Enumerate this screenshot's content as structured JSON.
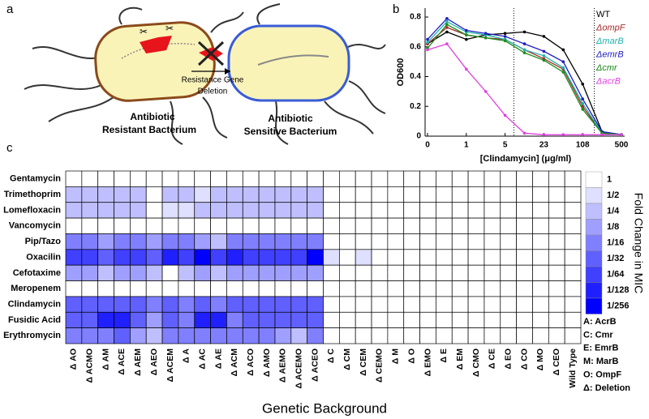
{
  "diagram": {
    "panel_label": "a",
    "gene_label_lines": [
      "Resistance Gene",
      "Deletion"
    ],
    "resistant_label_lines": [
      "Antibiotic",
      "Resistant Bacterium"
    ],
    "sensitive_label_lines": [
      "Antibiotic",
      "Sensitive Bacterium"
    ]
  },
  "chart_data": [
    {
      "type": "line",
      "panel_label": "b",
      "xlabel": "[Clindamycin] (μg/ml)",
      "ylabel": "OD600",
      "categories": [
        "0",
        null,
        "1",
        null,
        "5",
        null,
        "23",
        null,
        "108",
        null,
        "500"
      ],
      "ylim": [
        0,
        0.86
      ],
      "yticks": [
        0,
        0.2,
        0.4,
        0.6,
        0.8
      ],
      "legend": "upper right",
      "series": [
        {
          "name": "WT",
          "color": "#000000",
          "values": [
            0.62,
            0.7,
            0.65,
            0.68,
            0.69,
            0.7,
            0.67,
            0.58,
            0.35,
            0.03,
            0.01
          ]
        },
        {
          "name": "ΔompF",
          "color": "#a52a2a",
          "values": [
            0.62,
            0.73,
            0.68,
            0.66,
            0.65,
            0.58,
            0.52,
            0.45,
            0.2,
            0.02,
            0.01
          ]
        },
        {
          "name": "ΔmarB",
          "color": "#20b2aa",
          "values": [
            0.63,
            0.77,
            0.7,
            0.68,
            0.65,
            0.58,
            0.54,
            0.46,
            0.22,
            0.02,
            0.01
          ]
        },
        {
          "name": "ΔemrB",
          "color": "#1f1fbf",
          "values": [
            0.65,
            0.79,
            0.71,
            0.69,
            0.67,
            0.62,
            0.57,
            0.5,
            0.25,
            0.03,
            0.01
          ]
        },
        {
          "name": "Δcmr",
          "color": "#1a8a1a",
          "values": [
            0.59,
            0.75,
            0.68,
            0.66,
            0.64,
            0.56,
            0.51,
            0.43,
            0.18,
            0.02,
            0.01
          ]
        },
        {
          "name": "ΔacrB",
          "color": "#e040e0",
          "values": [
            0.58,
            0.62,
            0.45,
            0.3,
            0.14,
            0.02,
            0.01,
            0.01,
            0.01,
            0.01,
            0.01
          ]
        }
      ]
    },
    {
      "type": "heatmap",
      "panel_label": "c",
      "xlabel": "Genetic Background",
      "colorbar_label": "Fold Change in MIC",
      "color_min": "#ffffff",
      "color_max": "#0000ff",
      "rows": [
        "Gentamycin",
        "Trimethoprim",
        "Lomefloxacin",
        "Vancomycin",
        "Pip/Tazo",
        "Oxacilin",
        "Cefotaxime",
        "Meropenem",
        "Clindamycin",
        "Fusidic Acid",
        "Erythromycin"
      ],
      "columns": [
        "Δ AO",
        "Δ ACMO",
        "Δ AM",
        "Δ ACE",
        "Δ AEM",
        "Δ AEO",
        "Δ ACEM",
        "Δ A",
        "Δ AC",
        "Δ AE",
        "Δ ACM",
        "Δ ACO",
        "Δ AMO",
        "Δ AEMO",
        "Δ ACEMO",
        "Δ ACEO",
        "Δ C",
        "Δ CM",
        "Δ CEM",
        "Δ CEMO",
        "Δ M",
        "Δ O",
        "Δ EMO",
        "Δ E",
        "Δ EM",
        "Δ CMO",
        "Δ CE",
        "Δ EO",
        "Δ CO",
        "Δ MO",
        "Δ CEO",
        "Wild Type"
      ],
      "values": [
        [
          1,
          1,
          1,
          1,
          1,
          1,
          1,
          1,
          1,
          1,
          1,
          1,
          1,
          1,
          1,
          1,
          1,
          1,
          1,
          1,
          1,
          1,
          1,
          1,
          1,
          1,
          1,
          1,
          1,
          1,
          1,
          1
        ],
        [
          0.25,
          0.25,
          0.25,
          0.25,
          0.25,
          1,
          0.25,
          0.25,
          0.5,
          0.25,
          0.25,
          0.25,
          0.25,
          0.25,
          0.25,
          0.25,
          1,
          1,
          1,
          1,
          1,
          1,
          1,
          1,
          1,
          1,
          1,
          1,
          1,
          1,
          1,
          1
        ],
        [
          0.25,
          0.25,
          0.25,
          0.25,
          0.25,
          1,
          0.5,
          0.5,
          0.25,
          0.25,
          0.25,
          0.25,
          0.25,
          0.25,
          0.25,
          0.25,
          1,
          1,
          1,
          1,
          1,
          1,
          1,
          1,
          1,
          1,
          1,
          1,
          1,
          1,
          1,
          1
        ],
        [
          1,
          1,
          1,
          1,
          1,
          1,
          1,
          1,
          1,
          1,
          1,
          1,
          1,
          1,
          1,
          1,
          1,
          1,
          1,
          1,
          1,
          1,
          1,
          1,
          1,
          1,
          1,
          1,
          1,
          1,
          1,
          1
        ],
        [
          0.0625,
          0.0625,
          0.125,
          0.0625,
          0.0625,
          0.125,
          0.0625,
          0.0625,
          0.125,
          0.25,
          0.0625,
          0.0625,
          0.0625,
          0.0625,
          0.0625,
          0.0625,
          1,
          1,
          1,
          1,
          1,
          1,
          1,
          1,
          1,
          1,
          1,
          1,
          1,
          1,
          1,
          1
        ],
        [
          0.015625,
          0.015625,
          0.03125,
          0.015625,
          0.015625,
          0.03125,
          0.0078125,
          0.015625,
          0.00390625,
          0.015625,
          0.0078125,
          0.015625,
          0.015625,
          0.015625,
          0.015625,
          0.00390625,
          0.5,
          1,
          0.5,
          1,
          1,
          1,
          1,
          1,
          1,
          1,
          1,
          1,
          1,
          1,
          1,
          1
        ],
        [
          0.125,
          0.125,
          0.25,
          0.125,
          0.125,
          0.25,
          1,
          0.25,
          0.125,
          0.25,
          0.125,
          0.125,
          0.125,
          0.125,
          0.125,
          0.125,
          1,
          1,
          1,
          1,
          1,
          1,
          1,
          1,
          1,
          1,
          1,
          1,
          1,
          1,
          1,
          1
        ],
        [
          1,
          1,
          1,
          1,
          1,
          1,
          1,
          1,
          1,
          1,
          1,
          1,
          1,
          1,
          1,
          1,
          1,
          1,
          1,
          1,
          1,
          1,
          1,
          1,
          1,
          1,
          1,
          1,
          1,
          1,
          1,
          1
        ],
        [
          0.03125,
          0.03125,
          0.03125,
          0.03125,
          0.03125,
          0.0625,
          0.03125,
          0.0625,
          0.03125,
          0.0625,
          0.03125,
          0.03125,
          0.03125,
          0.03125,
          0.03125,
          0.03125,
          1,
          1,
          1,
          1,
          1,
          1,
          1,
          1,
          1,
          1,
          1,
          1,
          1,
          1,
          1,
          1
        ],
        [
          0.03125,
          0.03125,
          0.0078125,
          0.0078125,
          0.03125,
          0.125,
          0.03125,
          0.0625,
          0.0078125,
          0.0078125,
          0.0625,
          0.03125,
          0.03125,
          0.03125,
          0.03125,
          0.03125,
          1,
          1,
          1,
          1,
          1,
          1,
          1,
          1,
          1,
          1,
          1,
          1,
          1,
          1,
          1,
          1
        ],
        [
          0.0625,
          0.0625,
          0.0625,
          0.03125,
          0.125,
          0.25,
          0.0625,
          0.0625,
          0.0625,
          0.0625,
          0.0625,
          0.0625,
          0.0625,
          0.125,
          0.25,
          0.0625,
          1,
          1,
          1,
          1,
          1,
          1,
          1,
          1,
          1,
          1,
          1,
          1,
          1,
          1,
          1,
          1
        ]
      ],
      "colorbar_ticks": [
        1,
        {
          "value": 0.5,
          "label": "1/2"
        },
        {
          "value": 0.25,
          "label": "1/4"
        },
        {
          "value": 0.125,
          "label": "1/8"
        },
        {
          "value": 0.0625,
          "label": "1/16"
        },
        {
          "value": 0.03125,
          "label": "1/32"
        },
        {
          "value": 0.015625,
          "label": "1/64"
        },
        {
          "value": 0.0078125,
          "label": "1/128"
        },
        {
          "value": 0.00390625,
          "label": "1/256"
        }
      ],
      "key": [
        "A: AcrB",
        "C: Cmr",
        "E: EmrB",
        "M: MarB",
        "O: OmpF",
        "Δ: Deletion"
      ]
    }
  ]
}
